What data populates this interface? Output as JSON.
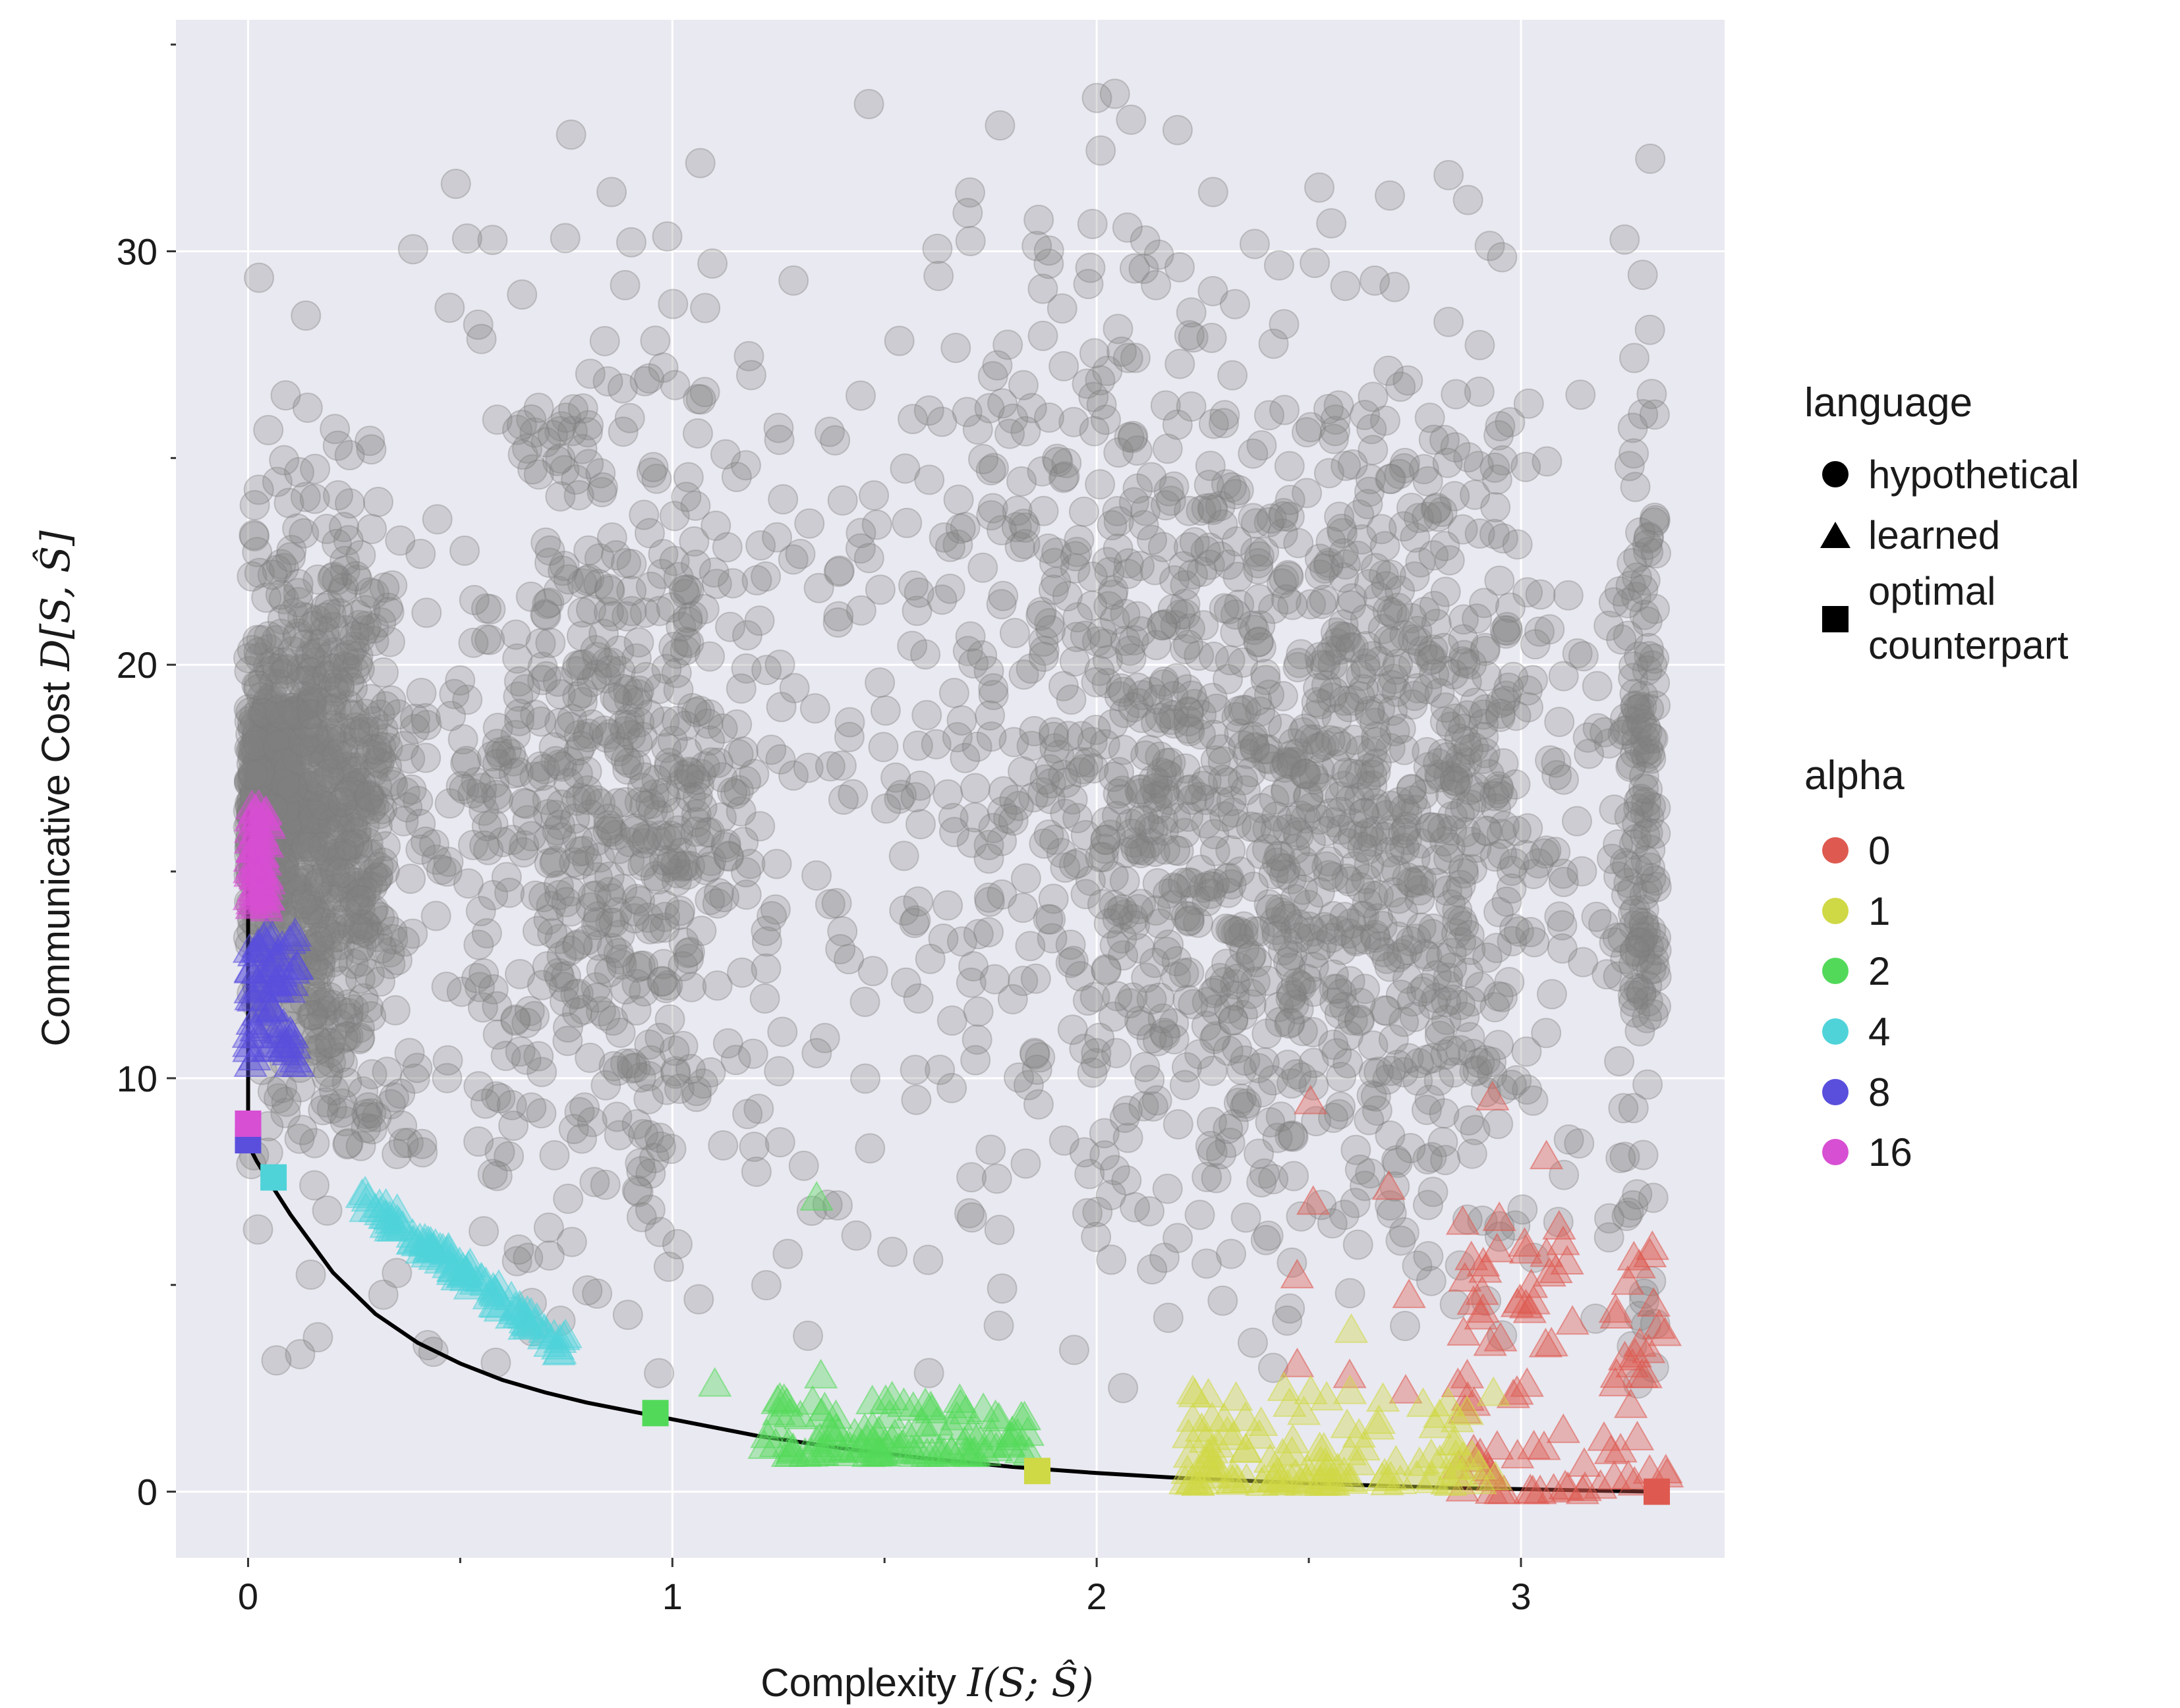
{
  "chart_data": {
    "type": "scatter",
    "xlabel": {
      "prefix": "Complexity ",
      "math_fn": "I",
      "math_args": "(S; Ŝ)"
    },
    "ylabel": {
      "prefix": "Communicative Cost ",
      "math_fn": "D",
      "math_args": "[S, Ŝ]"
    },
    "xlim": [
      -0.17,
      3.48
    ],
    "ylim": [
      -1.6,
      35.6
    ],
    "x_ticks": [
      0,
      1,
      2,
      3
    ],
    "x_tick_labels": [
      "0",
      "1",
      "2",
      "3"
    ],
    "x_minor_ticks": [
      0.5,
      1.5,
      2.5
    ],
    "y_ticks": [
      0,
      10,
      20,
      30
    ],
    "y_tick_labels": [
      "0",
      "10",
      "20",
      "30"
    ],
    "y_minor_ticks": [
      5,
      15,
      25,
      35
    ],
    "grid": true,
    "legend_position": "right",
    "legend": {
      "shape_title": "language",
      "shape_entries": [
        {
          "shape": "circle",
          "label_lines": [
            "hypothetical"
          ]
        },
        {
          "shape": "triangle",
          "label_lines": [
            "learned"
          ]
        },
        {
          "shape": "square",
          "label_lines": [
            "optimal",
            "counterpart"
          ]
        }
      ],
      "color_title": "alpha",
      "color_entries": [
        {
          "label": "0",
          "color": "#de5a50"
        },
        {
          "label": "1",
          "color": "#cfd845"
        },
        {
          "label": "2",
          "color": "#53d95a"
        },
        {
          "label": "4",
          "color": "#4fd3d9"
        },
        {
          "label": "8",
          "color": "#5a4fdc"
        },
        {
          "label": "16",
          "color": "#d74fd3"
        }
      ]
    },
    "hypothetical_color": "#808080",
    "frontier_curve": {
      "x": [
        0.0,
        0.0,
        0.02,
        0.05,
        0.1,
        0.2,
        0.3,
        0.4,
        0.5,
        0.6,
        0.7,
        0.8,
        0.9,
        1.0,
        1.2,
        1.4,
        1.6,
        1.8,
        2.0,
        2.2,
        2.5,
        2.8,
        3.0,
        3.2,
        3.32
      ],
      "y": [
        16.5,
        8.4,
        8.0,
        7.5,
        6.7,
        5.3,
        4.3,
        3.6,
        3.1,
        2.7,
        2.4,
        2.15,
        1.95,
        1.75,
        1.35,
        1.05,
        0.8,
        0.6,
        0.45,
        0.33,
        0.2,
        0.1,
        0.06,
        0.02,
        0.0
      ]
    },
    "optimal_counterparts": [
      {
        "alpha": "0",
        "x": 3.32,
        "y": 0.0
      },
      {
        "alpha": "1",
        "x": 1.86,
        "y": 0.5
      },
      {
        "alpha": "2",
        "x": 0.96,
        "y": 1.9
      },
      {
        "alpha": "4",
        "x": 0.06,
        "y": 7.6
      },
      {
        "alpha": "8",
        "x": 0.0,
        "y": 8.5
      },
      {
        "alpha": "16",
        "x": 0.0,
        "y": 8.9
      }
    ],
    "learned_clusters": [
      {
        "alpha": "0",
        "x_range": [
          2.85,
          3.35
        ],
        "y_range": [
          0.0,
          6.0
        ],
        "count": 85,
        "skew": "low"
      },
      {
        "alpha": "0",
        "x_range": [
          2.35,
          3.1
        ],
        "y_range": [
          1.0,
          10.5
        ],
        "count": 18,
        "skew": "none"
      },
      {
        "alpha": "1",
        "x_range": [
          2.2,
          2.95
        ],
        "y_range": [
          0.2,
          2.5
        ],
        "count": 120,
        "skew": "low"
      },
      {
        "alpha": "2",
        "x_range": [
          1.2,
          1.85
        ],
        "y_range": [
          0.9,
          2.3
        ],
        "count": 110,
        "skew": "low"
      },
      {
        "alpha": "4",
        "x_range": [
          0.25,
          0.75
        ],
        "y_range": [
          3.5,
          7.3
        ],
        "count": 100,
        "skew": "curve"
      },
      {
        "alpha": "8",
        "x_range": [
          0.0,
          0.12
        ],
        "y_range": [
          10.2,
          13.5
        ],
        "count": 70,
        "skew": "none"
      },
      {
        "alpha": "16",
        "x_range": [
          0.0,
          0.05
        ],
        "y_range": [
          14.0,
          16.6
        ],
        "count": 70,
        "skew": "none"
      }
    ],
    "learned_outliers": [
      {
        "alpha": "2",
        "x": 1.34,
        "y": 7.1
      },
      {
        "alpha": "2",
        "x": 1.1,
        "y": 2.6
      },
      {
        "alpha": "2",
        "x": 1.35,
        "y": 2.8
      },
      {
        "alpha": "1",
        "x": 2.6,
        "y": 3.9
      },
      {
        "alpha": "0",
        "x": 3.06,
        "y": 8.1
      },
      {
        "alpha": "0",
        "x": 3.09,
        "y": 6.4
      },
      {
        "alpha": "4",
        "x": 0.73,
        "y": 3.5
      }
    ],
    "hypothetical_clusters": [
      {
        "x_center": 0.05,
        "x_spread": 0.04,
        "y_center": 16.8,
        "y_spread": 1.4,
        "count": 350
      },
      {
        "x_center": 0.18,
        "x_spread": 0.1,
        "y_center": 16.0,
        "y_spread": 3.8,
        "count": 700
      },
      {
        "x_center": 0.85,
        "x_spread": 0.22,
        "y_center": 16.5,
        "y_spread": 5.5,
        "count": 700
      },
      {
        "x_center": 2.4,
        "x_spread": 0.38,
        "y_center": 16.5,
        "y_spread": 5.5,
        "count": 1100
      },
      {
        "x_center": 2.8,
        "x_spread": 0.15,
        "y_center": 17.0,
        "y_spread": 5.0,
        "count": 250
      },
      {
        "x_center": 3.28,
        "x_spread": 0.03,
        "y_center": 17.0,
        "y_spread": 5.5,
        "count": 160
      },
      {
        "x_center": 1.9,
        "x_spread": 0.25,
        "y_center": 24.0,
        "y_spread": 5.0,
        "count": 140
      },
      {
        "x_center": 1.5,
        "x_spread": 0.2,
        "y_center": 14.0,
        "y_spread": 6.0,
        "count": 60
      }
    ]
  }
}
